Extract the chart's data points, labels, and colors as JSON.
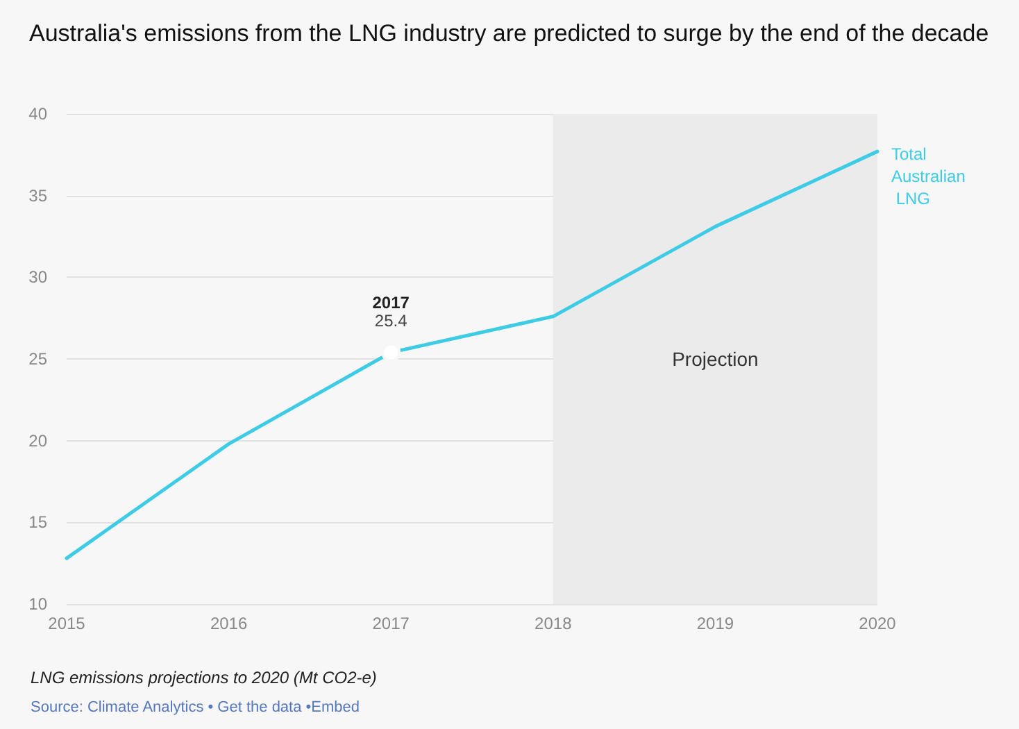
{
  "chart_data": {
    "type": "line",
    "title": "Australia's emissions from the LNG industry are predicted to surge by the end of the decade",
    "x": [
      2015,
      2016,
      2017,
      2018,
      2019,
      2020
    ],
    "series": [
      {
        "name": "Total Australian LNG",
        "color": "#3dcbe6",
        "values": [
          12.8,
          19.8,
          25.4,
          27.6,
          33.1,
          37.7
        ],
        "value_labels": [
          null,
          null,
          "25.4",
          null,
          null,
          null
        ]
      }
    ],
    "xlim": [
      2015,
      2020
    ],
    "xticks": [
      2015,
      2016,
      2017,
      2018,
      2019,
      2020
    ],
    "ylim": [
      10,
      40
    ],
    "yticks": [
      10,
      15,
      20,
      25,
      30,
      35,
      40
    ],
    "grid": "y",
    "legend": false,
    "marker": "none",
    "line_style": "solid",
    "bands": [
      {
        "axis": "x",
        "from": 2018,
        "to": 2020,
        "label": "Projection",
        "color": "#ebebeb"
      }
    ],
    "annotations": [
      {
        "text": "2017",
        "x": 2017,
        "y": 25.4
      },
      "LNG emissions projections to 2020 (Mt CO2-e)",
      "Source: Climate Analytics • Get the data •Embed"
    ]
  }
}
